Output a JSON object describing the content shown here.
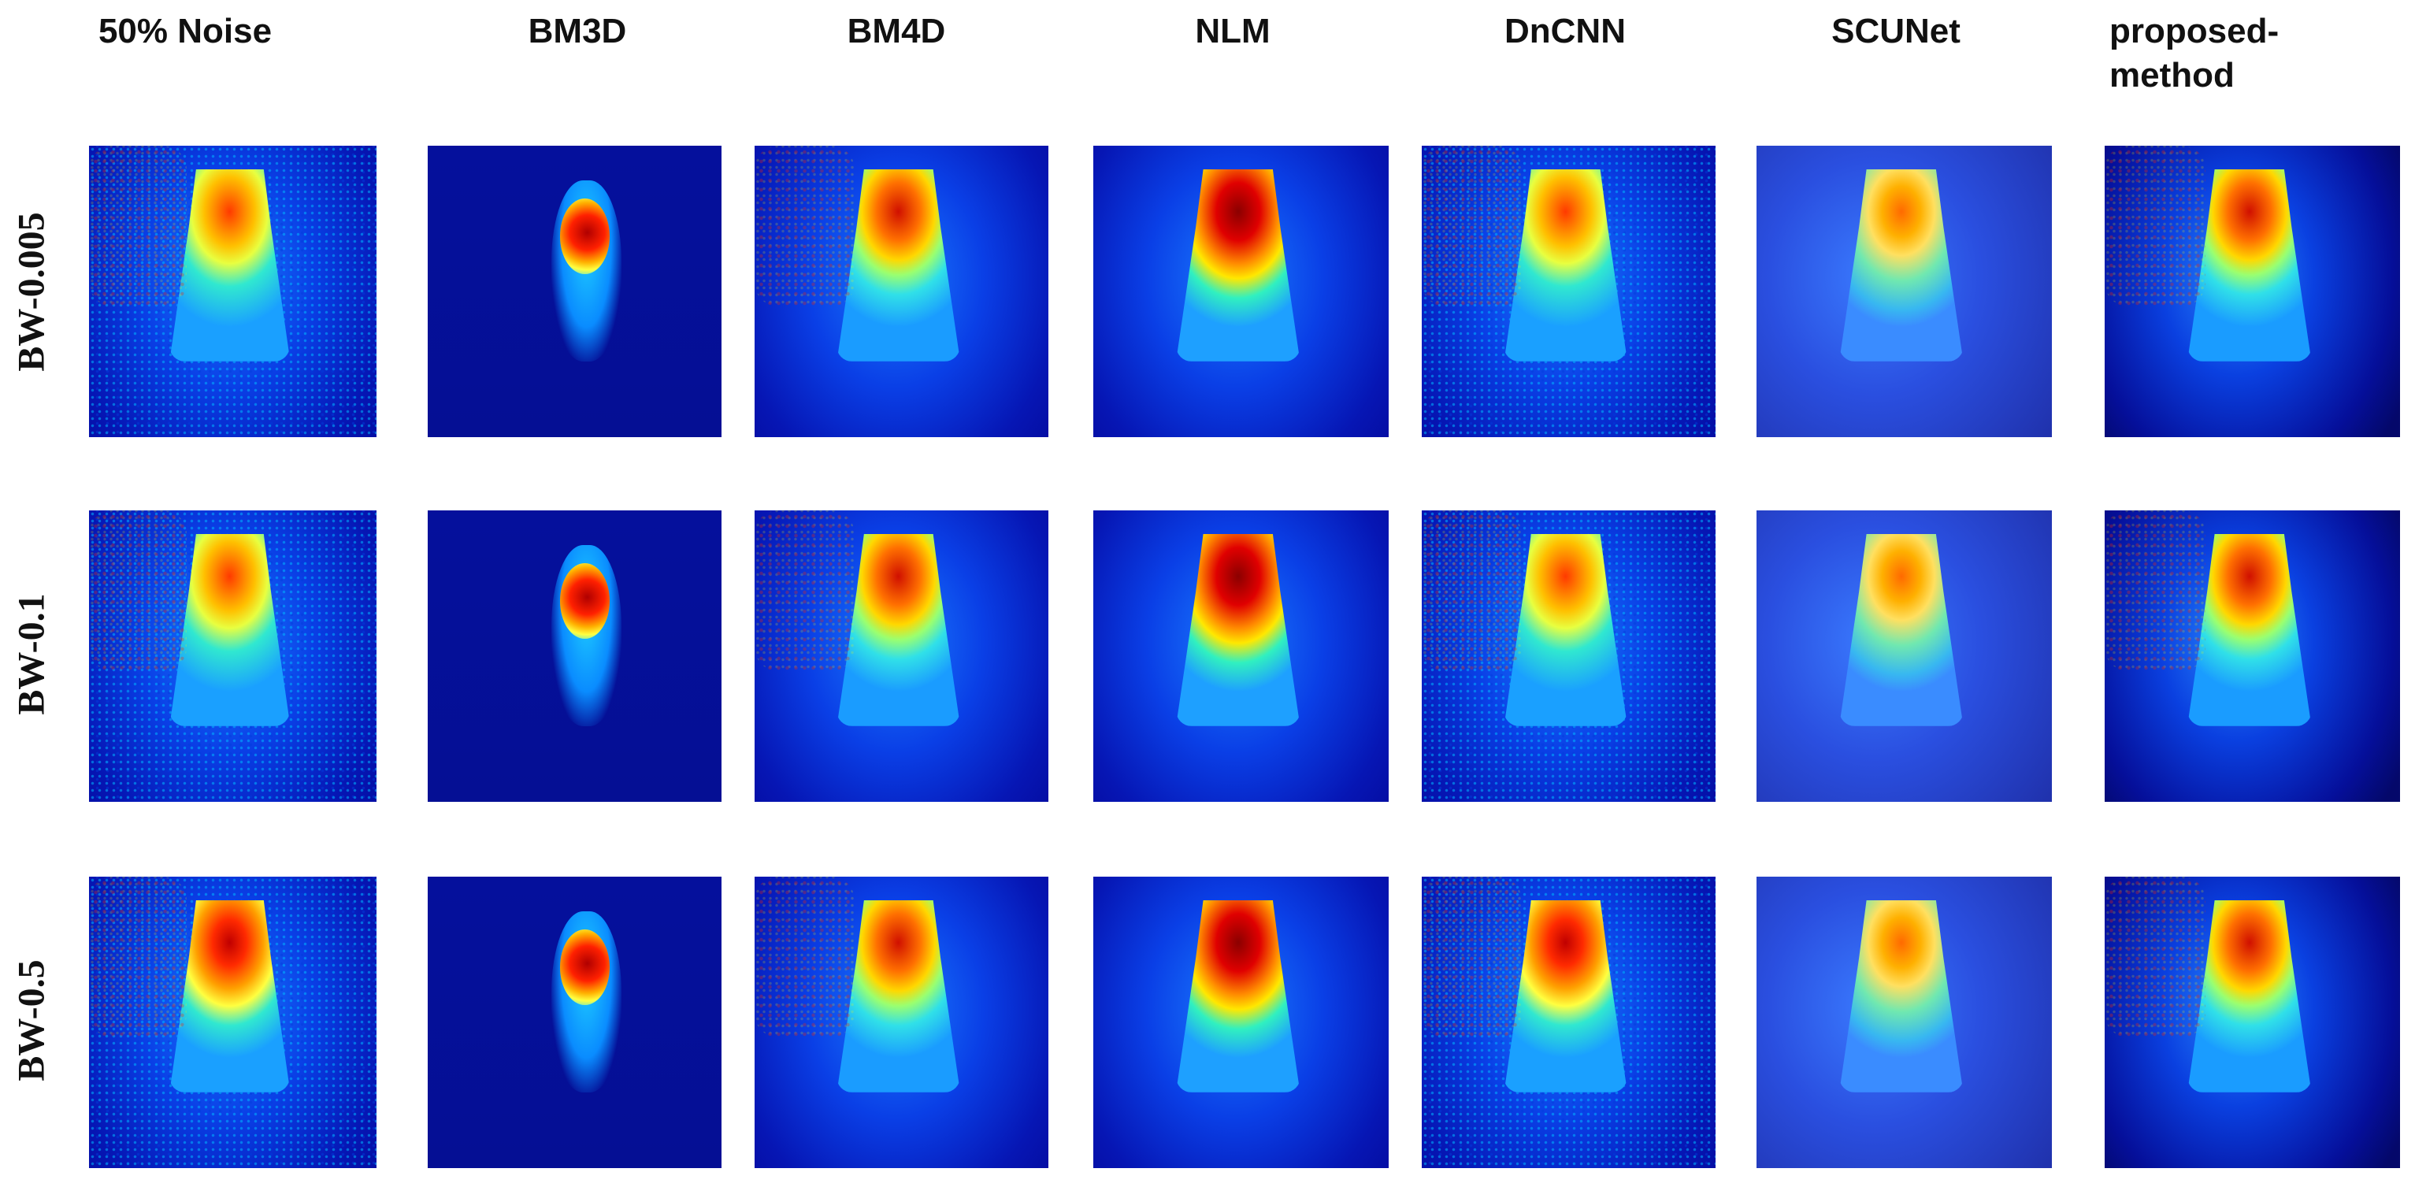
{
  "columns": [
    {
      "label": "50% Noise"
    },
    {
      "label": "BM3D"
    },
    {
      "label": "BM4D"
    },
    {
      "label": "NLM"
    },
    {
      "label": "DnCNN"
    },
    {
      "label": "SCUNet"
    },
    {
      "label": "proposed-\nmethod"
    }
  ],
  "rows": [
    {
      "label": "BW-0.005"
    },
    {
      "label": "BW-0.1"
    },
    {
      "label": "BW-0.5"
    }
  ],
  "colormap": "jet",
  "colors": {
    "background_low": "#00008b",
    "mid_blue": "#0050ff",
    "cyan": "#00e0ff",
    "yellow": "#ffe000",
    "orange": "#ff7a00",
    "red": "#e00000",
    "dark_red": "#8b0000"
  }
}
